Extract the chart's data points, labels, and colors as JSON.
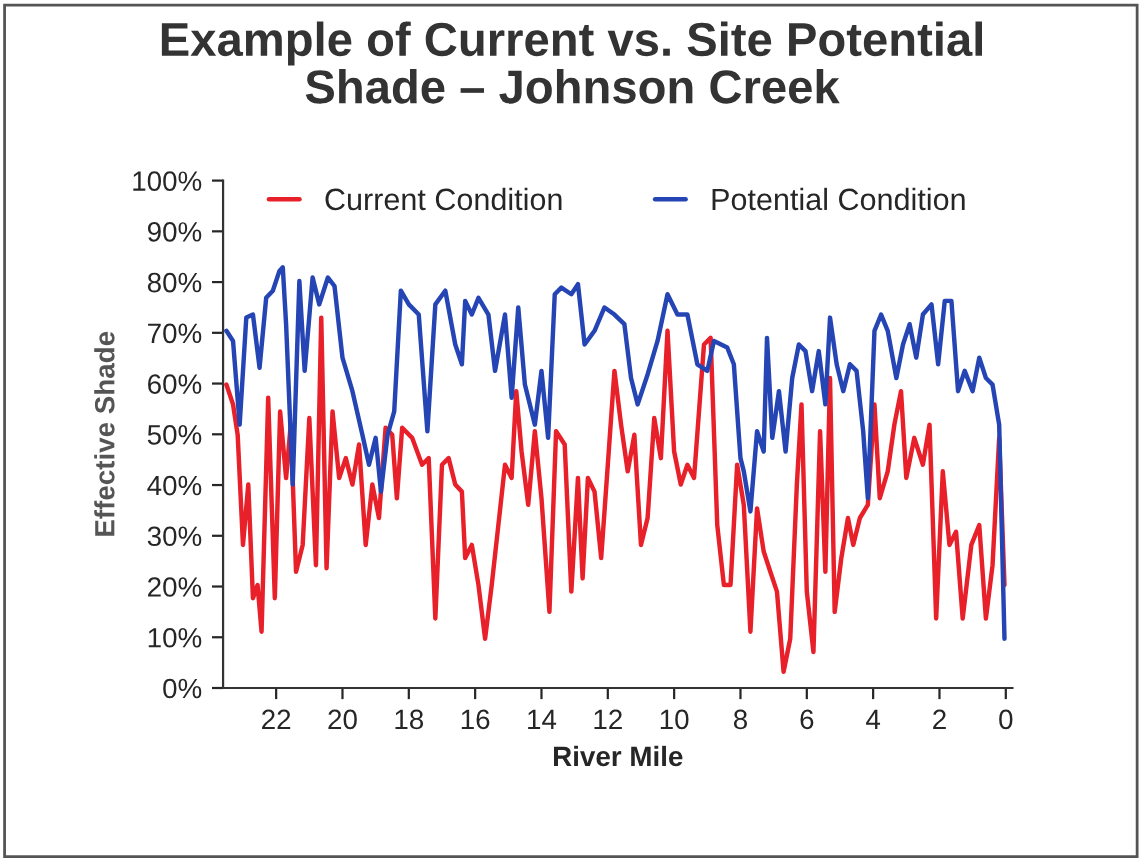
{
  "chart_data": {
    "type": "line",
    "title": "Example of Current vs. Site Potential\nShade – Johnson Creek",
    "xlabel": "River Mile",
    "ylabel": "Effective Shade",
    "xlim": [
      23.6,
      -0.2
    ],
    "xticks": [
      22,
      20,
      18,
      16,
      14,
      12,
      10,
      8,
      6,
      4,
      2,
      0
    ],
    "ylim": [
      0,
      100
    ],
    "yticks": [
      {
        "value": 0,
        "label": "0%"
      },
      {
        "value": 10,
        "label": "10%"
      },
      {
        "value": 20,
        "label": "20%"
      },
      {
        "value": 30,
        "label": "30%"
      },
      {
        "value": 40,
        "label": "40%"
      },
      {
        "value": 50,
        "label": "50%"
      },
      {
        "value": 60,
        "label": "60%"
      },
      {
        "value": 70,
        "label": "70%"
      },
      {
        "value": 80,
        "label": "80%"
      },
      {
        "value": 90,
        "label": "90%"
      },
      {
        "value": 100,
        "label": "100%"
      }
    ],
    "grid": false,
    "legend": "top",
    "marker": "none",
    "line_style": "solid",
    "series": [
      {
        "name": "Current Condition",
        "color": "#e8202a",
        "x": [
          23.5,
          23.3,
          23.16,
          23.0,
          22.84,
          22.7,
          22.56,
          22.44,
          22.24,
          22.04,
          21.88,
          21.7,
          21.56,
          21.4,
          21.2,
          21.0,
          20.8,
          20.64,
          20.48,
          20.3,
          20.1,
          19.9,
          19.7,
          19.5,
          19.3,
          19.1,
          18.9,
          18.7,
          18.5,
          18.36,
          18.2,
          17.9,
          17.6,
          17.4,
          17.2,
          17.0,
          16.8,
          16.6,
          16.4,
          16.3,
          16.1,
          15.9,
          15.7,
          15.5,
          15.3,
          15.1,
          14.9,
          14.76,
          14.6,
          14.4,
          14.2,
          14.0,
          13.76,
          13.56,
          13.3,
          13.1,
          12.9,
          12.76,
          12.6,
          12.4,
          12.2,
          12.0,
          11.8,
          11.6,
          11.4,
          11.2,
          11.0,
          10.8,
          10.6,
          10.4,
          10.2,
          10.0,
          9.8,
          9.6,
          9.4,
          9.1,
          8.9,
          8.7,
          8.5,
          8.3,
          8.1,
          7.9,
          7.7,
          7.5,
          7.3,
          7.1,
          6.9,
          6.7,
          6.5,
          6.3,
          6.16,
          6.0,
          5.8,
          5.6,
          5.44,
          5.3,
          5.16,
          4.96,
          4.76,
          4.6,
          4.4,
          4.16,
          3.96,
          3.8,
          3.56,
          3.36,
          3.16,
          3.0,
          2.76,
          2.5,
          2.3,
          2.1,
          1.9,
          1.7,
          1.5,
          1.3,
          1.04,
          0.8,
          0.6,
          0.4,
          0.2,
          0.04
        ],
        "values": [
          59.8,
          55.9,
          49.9,
          28.2,
          40.1,
          17.7,
          20.3,
          11.1,
          57.2,
          17.7,
          54.5,
          41.4,
          51.9,
          22.9,
          28.2,
          53.2,
          24.2,
          73,
          23.6,
          54.5,
          41.4,
          45.3,
          40.1,
          48,
          28.2,
          40.1,
          33.5,
          51.3,
          49.9,
          37.4,
          51.3,
          49.3,
          44,
          45.3,
          13.7,
          44,
          45.3,
          40.1,
          38.7,
          25.6,
          28.2,
          20.3,
          9.7,
          20.3,
          32.1,
          44,
          41.4,
          58.5,
          46.6,
          36.1,
          50.6,
          37.4,
          15,
          50.6,
          48,
          19,
          41.4,
          21.6,
          41.4,
          38.7,
          25.6,
          44,
          62.5,
          51.9,
          42.7,
          49.9,
          28.2,
          33.5,
          53.2,
          45.3,
          70.4,
          46.6,
          40.1,
          44,
          41.4,
          67.7,
          69,
          32.1,
          20.3,
          20.3,
          44,
          36.1,
          11.1,
          35.4,
          26.9,
          22.9,
          19,
          3.2,
          9.7,
          40.1,
          55.9,
          19,
          7.1,
          50.6,
          22.9,
          61.1,
          15,
          25.6,
          33.5,
          28.2,
          33.5,
          36.1,
          55.9,
          37.4,
          42.7,
          51.9,
          58.5,
          41.4,
          49.3,
          44,
          51.9,
          13.7,
          42.7,
          28.2,
          30.8,
          13.7,
          28.2,
          32.1,
          13.7,
          24.2,
          49.3,
          20.3
        ]
      },
      {
        "name": "Potential Condition",
        "color": "#2545b5",
        "x": [
          23.5,
          23.3,
          23.1,
          22.9,
          22.7,
          22.5,
          22.3,
          22.1,
          21.9,
          21.8,
          21.7,
          21.5,
          21.3,
          21.14,
          20.9,
          20.7,
          20.44,
          20.24,
          20.0,
          19.7,
          19.4,
          19.2,
          19.0,
          18.84,
          18.64,
          18.44,
          18.24,
          18.0,
          17.7,
          17.44,
          17.2,
          16.9,
          16.6,
          16.4,
          16.3,
          16.1,
          15.9,
          15.6,
          15.4,
          15.1,
          14.9,
          14.7,
          14.5,
          14.2,
          14.0,
          13.8,
          13.6,
          13.4,
          13.1,
          12.9,
          12.7,
          12.4,
          12.1,
          11.8,
          11.5,
          11.3,
          11.1,
          10.8,
          10.5,
          10.2,
          9.9,
          9.6,
          9.3,
          9.0,
          8.8,
          8.4,
          8.2,
          8.0,
          7.9,
          7.7,
          7.5,
          7.3,
          7.2,
          7.04,
          6.84,
          6.64,
          6.44,
          6.24,
          6.04,
          5.84,
          5.64,
          5.44,
          5.3,
          5.1,
          4.9,
          4.7,
          4.5,
          4.3,
          4.16,
          3.96,
          3.76,
          3.56,
          3.3,
          3.1,
          2.9,
          2.7,
          2.5,
          2.24,
          2.04,
          1.84,
          1.64,
          1.44,
          1.24,
          1.0,
          0.8,
          0.6,
          0.4,
          0.2,
          0.04
        ],
        "values": [
          70.4,
          68.4,
          51.9,
          73,
          73.6,
          63.1,
          76.9,
          78.3,
          82.2,
          82.9,
          71.7,
          40.1,
          80.2,
          62.5,
          80.9,
          75.6,
          80.9,
          79.2,
          65.1,
          58.5,
          49.9,
          44,
          49.3,
          38.7,
          49.9,
          54.5,
          78.3,
          75.6,
          73.6,
          50.6,
          75.6,
          78.3,
          67.7,
          63.8,
          76.3,
          73.6,
          76.9,
          73.6,
          62.5,
          73.6,
          57.2,
          75,
          59.8,
          51.9,
          62.5,
          49.3,
          77.6,
          78.9,
          77.6,
          79.6,
          67.7,
          70.4,
          75,
          73.6,
          71.7,
          61.1,
          55.9,
          61.8,
          68.4,
          77.6,
          73.6,
          73.6,
          63.8,
          62.5,
          68.4,
          67.1,
          63.8,
          45.3,
          42.7,
          34.8,
          50.6,
          46.6,
          69,
          49.3,
          58.5,
          46.6,
          61.1,
          67.7,
          66.4,
          58.5,
          66.4,
          55.9,
          73,
          63.8,
          58.5,
          63.8,
          62.5,
          50.6,
          37.4,
          70.4,
          73.6,
          70.4,
          61.1,
          67.7,
          71.7,
          65.1,
          73.6,
          75.6,
          63.8,
          76.3,
          76.3,
          58.5,
          62.5,
          58.5,
          65.1,
          61.1,
          59.8,
          51.9,
          9.7
        ]
      }
    ]
  }
}
